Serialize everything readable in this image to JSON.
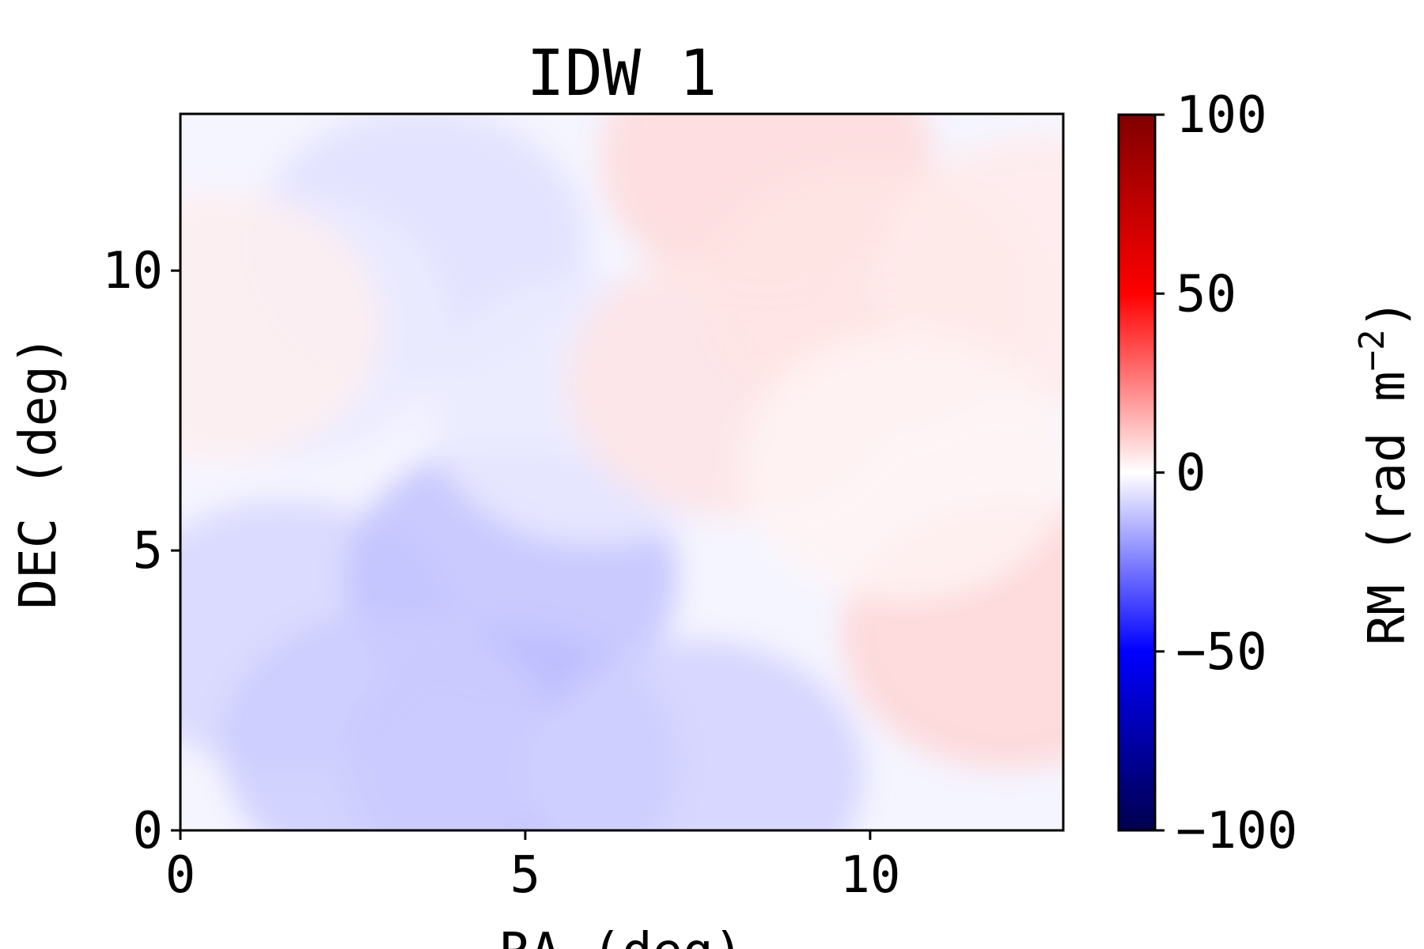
{
  "chart_data": {
    "type": "heatmap",
    "title": "IDW 1",
    "xlabel": "RA (deg)",
    "ylabel": "DEC (deg)",
    "xlim": [
      0,
      12.8
    ],
    "ylim": [
      0,
      12.8
    ],
    "x_ticks": [
      {
        "value": 0,
        "label": "0"
      },
      {
        "value": 5,
        "label": "5"
      },
      {
        "value": 10,
        "label": "10"
      }
    ],
    "y_ticks": [
      {
        "value": 0,
        "label": "0"
      },
      {
        "value": 5,
        "label": "5"
      },
      {
        "value": 10,
        "label": "10"
      }
    ],
    "colorbar": {
      "label_main": "RM (rad m",
      "label_exp": "−2",
      "label_close": ")",
      "range": [
        -100,
        100
      ],
      "colormap": "seismic",
      "colormap_stops": [
        "#00004d",
        "#0000ff",
        "#ffffff",
        "#ff0000",
        "#800000"
      ],
      "ticks": [
        {
          "value": 100,
          "label": "100"
        },
        {
          "value": 50,
          "label": "50"
        },
        {
          "value": 0,
          "label": "0"
        },
        {
          "value": -50,
          "label": "−50"
        },
        {
          "value": -100,
          "label": "−100"
        }
      ]
    },
    "grid": false,
    "field_blobs": [
      {
        "x": 1.5,
        "y": 3.5,
        "rm": -8
      },
      {
        "x": 4.8,
        "y": 4.5,
        "rm": -12
      },
      {
        "x": 4.8,
        "y": 1.2,
        "rm": -13
      },
      {
        "x": 3.0,
        "y": 1.5,
        "rm": -10
      },
      {
        "x": 7.5,
        "y": 1.0,
        "rm": -9
      },
      {
        "x": 3.5,
        "y": 10.5,
        "rm": -6
      },
      {
        "x": 1.5,
        "y": 9.0,
        "rm": -4
      },
      {
        "x": 6.0,
        "y": 7.5,
        "rm": -4
      },
      {
        "x": 8.5,
        "y": 12.0,
        "rm": 7
      },
      {
        "x": 8.0,
        "y": 8.0,
        "rm": 5
      },
      {
        "x": 10.0,
        "y": 9.5,
        "rm": 5
      },
      {
        "x": 12.0,
        "y": 3.5,
        "rm": 8
      },
      {
        "x": 12.5,
        "y": 10.0,
        "rm": 4
      },
      {
        "x": 0.5,
        "y": 9.0,
        "rm": 3
      },
      {
        "x": 10.5,
        "y": 6.5,
        "rm": 2
      }
    ]
  }
}
